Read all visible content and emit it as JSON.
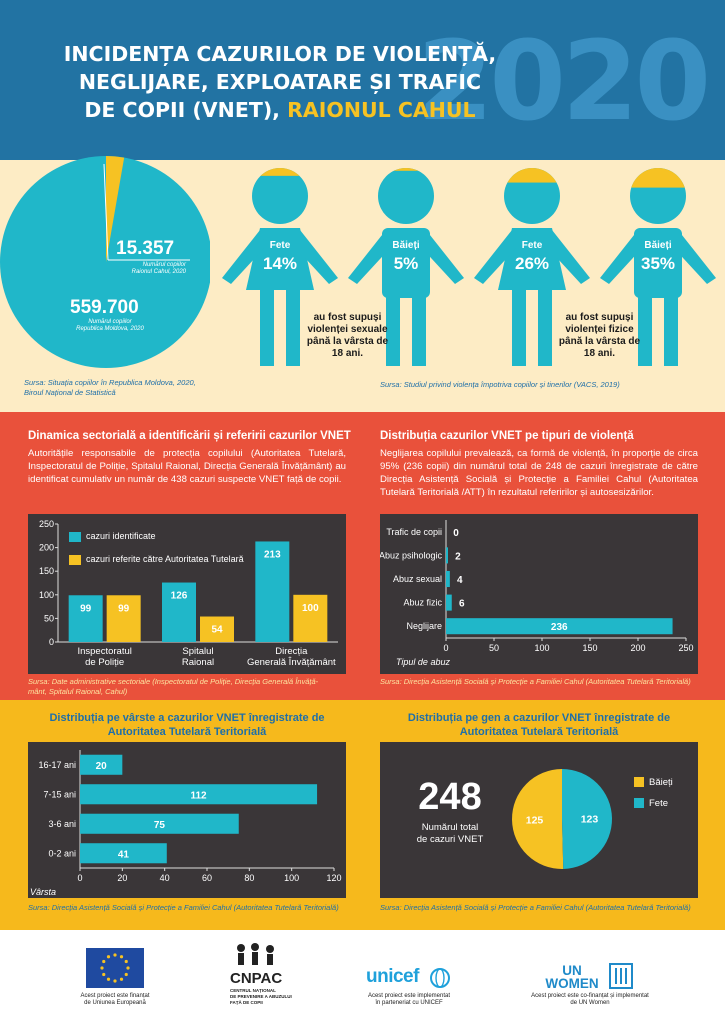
{
  "header": {
    "title_line1": "INCIDENȚA CAZURILOR DE VIOLENȚĂ,",
    "title_line2": "NEGLIJARE, EXPLOATARE ȘI TRAFIC",
    "title_line3_a": "DE COPII (VNET), ",
    "title_line3_b": "RAIONUL CAHUL",
    "year": "2020"
  },
  "population": {
    "cahul_value": "15.357",
    "cahul_label1": "Numărul copiilor",
    "cahul_label2": "Raionul Cahul, 2020",
    "moldova_value": "559.700",
    "moldova_label1": "Numărul copiilor",
    "moldova_label2": "Republica Moldova, 2020",
    "share": 0.0274,
    "source1": "Sursa: Situația copiilor în Republica Moldova, 2020,",
    "source2": "Biroul Național de Statistică"
  },
  "figures": [
    {
      "label": "Fete",
      "pct": "14%",
      "fill": 0.14
    },
    {
      "label": "Băieți",
      "pct": "5%",
      "fill": 0.05
    },
    {
      "label": "Fete",
      "pct": "26%",
      "fill": 0.26
    },
    {
      "label": "Băieți",
      "pct": "35%",
      "fill": 0.35
    }
  ],
  "figure_captions": {
    "sexual_1": "au fost supuși",
    "sexual_2": "violenței sexuale",
    "sexual_3": "până la vârsta de",
    "sexual_4": "18 ani.",
    "physical_1": "au fost supuși",
    "physical_2": "violenței fizice",
    "physical_3": "până la vârsta de",
    "physical_4": "18 ani.",
    "source": "Sursa: Studiul privind violența împotriva copiilor și tinerilor (VACS, 2019)"
  },
  "colors": {
    "teal": "#20b7c9",
    "yellow": "#f6c223",
    "blue": "#2273a3",
    "red": "#e9513b",
    "cream": "#fdecc5",
    "dark": "#3a3638"
  },
  "section_dinamica": {
    "title": "Dinamica sectorială a identificării și referirii cazurilor VNET",
    "text": "Autoritățile responsabile de protecția copilului (Autoritatea Tutelară, Inspectoratul de Poliție, Spitalul Raional, Direcția Generală Învățământ) au identificat cumulativ un număr de 438 cazuri suspecte VNET față de copii.",
    "source1": "Sursa: Date administrative sectoriale (Inspectoratul de Poliție, Direcția Generală Învăță-",
    "source2": "mânt, Spitalul Raional, Cahul)",
    "cat_lines": [
      [
        "Inspectoratul",
        "de Poliție"
      ],
      [
        "Spitalul",
        "Raional"
      ],
      [
        "Direcția",
        "Generală Învățământ"
      ]
    ]
  },
  "section_tipuri": {
    "title": "Distribuția cazurilor VNET pe tipuri de violență",
    "text": "Neglijarea copilului prevalează, ca formă de violență, în proporție de circa 95% (236 copii) din numărul total de 248 de cazuri înregistrate de către Direcția Asistență Socială și Protecție a Familiei Cahul (Autoritatea Tutelară Teritorială /ATT) în rezultatul referirilor și autosesizărilor.",
    "source": "Sursa: Direcția Asistență Socială și Protecție a Familiei Cahul (Autoritatea Tutelară Teritorială)"
  },
  "section_varste": {
    "title1": "Distribuția pe vârste a cazurilor VNET înregistrate de",
    "title2": "Autoritatea Tutelară Teritorială",
    "source": "Sursa: Direcția Asistență Socială și Protecție a Familiei Cahul (Autoritatea Tutelară Teritorială)"
  },
  "section_gen": {
    "title1": "Distribuția pe gen a cazurilor VNET înregistrate de",
    "title2": "Autoritatea Tutelară Teritorială",
    "total": "248",
    "total_label1": "Numărul total",
    "total_label2": "de cazuri VNET",
    "source": "Sursa: Direcția Asistență Socială și Protecție a Familiei Cahul (Autoritatea Tutelară Teritorială)"
  },
  "footer": {
    "eu_cap1": "Acest proiect este finanțat",
    "eu_cap2": "de Uniunea Europeană",
    "cnpac_name": "CNPAC",
    "cnpac_sub1": "CENTRUL NAȚIONAL",
    "cnpac_sub2": "DE PREVENIRE A ABUZULUI",
    "cnpac_sub3": "FAȚĂ DE COPII",
    "unicef_name": "unicef",
    "unicef_cap1": "Acest proiect este implementat",
    "unicef_cap2": "în parteneriat cu UNICEF",
    "unwomen_name": "UN WOMEN",
    "unwomen_cap1": "Acest proiect este co-finanțat și implementat",
    "unwomen_cap2": "de UN Women"
  },
  "chart_data": [
    {
      "type": "bar",
      "categories": [
        "Inspectoratul de Poliție",
        "Spitalul Raional",
        "Direcția Generală Învățământ"
      ],
      "series": [
        {
          "name": "cazuri identificate",
          "values": [
            99,
            126,
            213
          ],
          "color": "#20b7c9"
        },
        {
          "name": "cazuri referite către Autoritatea Tutelară",
          "values": [
            99,
            54,
            100
          ],
          "color": "#f6c223"
        }
      ],
      "ylim": [
        0,
        250
      ],
      "yticks": [
        0,
        50,
        100,
        150,
        200,
        250
      ],
      "legend": "top-left",
      "grid": false
    },
    {
      "type": "bar",
      "orientation": "horizontal",
      "categories": [
        "Trafic de copii",
        "Abuz psihologic",
        "Abuz sexual",
        "Abuz fizic",
        "Neglijare"
      ],
      "values": [
        0,
        2,
        4,
        6,
        236
      ],
      "xlim": [
        0,
        250
      ],
      "xticks": [
        0,
        50,
        100,
        150,
        200,
        250
      ],
      "ylabel": "Tipul de abuz",
      "color": "#20b7c9"
    },
    {
      "type": "bar",
      "orientation": "horizontal",
      "categories": [
        "16-17 ani",
        "7-15 ani",
        "3-6 ani",
        "0-2 ani"
      ],
      "values": [
        20,
        112,
        75,
        41
      ],
      "xlim": [
        0,
        120
      ],
      "xticks": [
        0,
        20,
        40,
        60,
        80,
        100,
        120
      ],
      "ylabel": "Vârsta",
      "color": "#20b7c9"
    },
    {
      "type": "pie",
      "categories": [
        "Băieți",
        "Fete"
      ],
      "values": [
        125,
        123
      ],
      "colors": [
        "#f6c223",
        "#20b7c9"
      ],
      "legend": "right"
    }
  ]
}
